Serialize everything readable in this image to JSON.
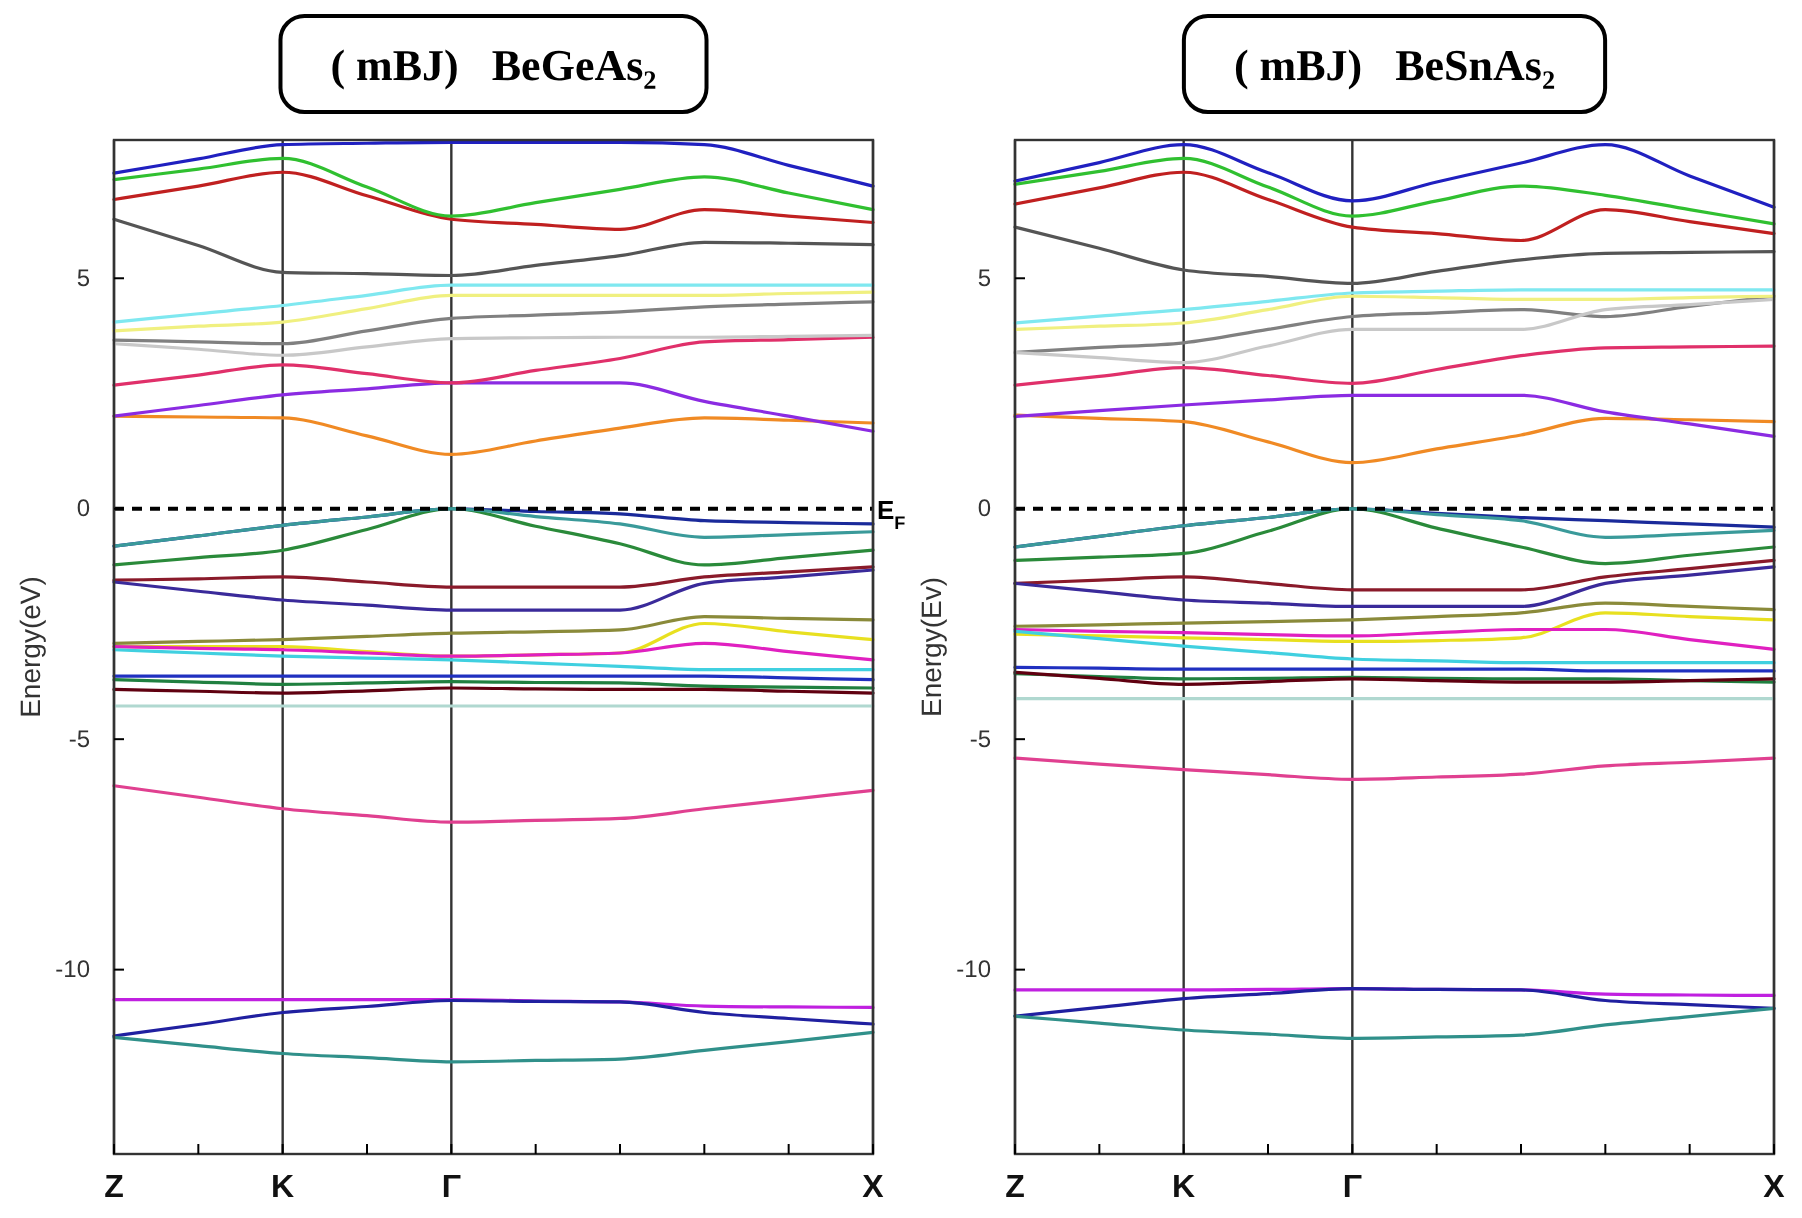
{
  "chart_data": [
    {
      "type": "line",
      "title": "( mBJ)   BeGeAs₂",
      "ylabel": "Energy(eV)",
      "categories": [
        "Z",
        null,
        "K",
        null,
        "Γ",
        null,
        null,
        null,
        null,
        "X"
      ],
      "ylim": [
        -14,
        8
      ],
      "yticks": [
        -10,
        -5,
        0,
        5
      ],
      "grid": "x",
      "marker": "none",
      "line_style": "solid",
      "ref_lines": [
        {
          "axis": "y",
          "value": 0,
          "label": "E$_{F}$",
          "color": "#000000",
          "line_style": "dashed"
        }
      ],
      "series": [
        {
          "color": "#f08a24",
          "values": [
            2.01,
            1.99,
            1.97,
            1.58,
            1.18,
            1.47,
            1.75,
            1.97,
            1.92,
            1.86
          ]
        },
        {
          "color": "#8b2be2",
          "values": [
            2.01,
            2.24,
            2.47,
            2.6,
            2.73,
            2.73,
            2.73,
            2.33,
            2.01,
            1.68
          ]
        },
        {
          "color": "#e0306a",
          "values": [
            2.68,
            2.9,
            3.12,
            2.93,
            2.73,
            3.0,
            3.26,
            3.62,
            3.67,
            3.72
          ]
        },
        {
          "color": "#808080",
          "values": [
            3.66,
            3.62,
            3.58,
            3.86,
            4.13,
            4.2,
            4.27,
            4.38,
            4.44,
            4.49
          ]
        },
        {
          "color": "#c8c8c8",
          "values": [
            3.58,
            3.46,
            3.33,
            3.51,
            3.69,
            3.71,
            3.72,
            3.72,
            3.74,
            3.76
          ]
        },
        {
          "color": "#7fe8f0",
          "values": [
            4.05,
            4.23,
            4.41,
            4.63,
            4.85,
            4.85,
            4.85,
            4.85,
            4.85,
            4.85
          ]
        },
        {
          "color": "#f0f080",
          "values": [
            3.86,
            3.96,
            4.05,
            4.34,
            4.63,
            4.63,
            4.63,
            4.63,
            4.67,
            4.7
          ]
        },
        {
          "color": "#555555",
          "values": [
            6.28,
            5.71,
            5.13,
            5.1,
            5.06,
            5.28,
            5.49,
            5.78,
            5.76,
            5.73
          ]
        },
        {
          "color": "#c02020",
          "values": [
            6.71,
            7.0,
            7.3,
            6.79,
            6.28,
            6.17,
            6.06,
            6.49,
            6.35,
            6.21
          ]
        },
        {
          "color": "#30c030",
          "values": [
            7.14,
            7.37,
            7.6,
            6.98,
            6.35,
            6.64,
            6.93,
            7.2,
            6.85,
            6.49
          ]
        },
        {
          "color": "#2020c0",
          "values": [
            7.28,
            7.59,
            7.9,
            7.93,
            7.95,
            7.95,
            7.95,
            7.9,
            7.45,
            7.0
          ]
        },
        {
          "color": "#1a2a9a",
          "values": [
            -0.81,
            -0.59,
            -0.36,
            -0.18,
            0,
            -0.06,
            -0.11,
            -0.26,
            -0.3,
            -0.33
          ]
        },
        {
          "color": "#2a8a3a",
          "values": [
            -1.22,
            -1.06,
            -0.9,
            -0.45,
            0,
            -0.38,
            -0.76,
            -1.22,
            -1.06,
            -0.9
          ]
        },
        {
          "color": "#3a9a9a",
          "values": [
            -0.81,
            -0.59,
            -0.36,
            -0.18,
            0,
            -0.17,
            -0.33,
            -0.62,
            -0.56,
            -0.5
          ]
        },
        {
          "color": "#8a1a2a",
          "values": [
            -1.55,
            -1.52,
            -1.48,
            -1.59,
            -1.7,
            -1.7,
            -1.7,
            -1.48,
            -1.37,
            -1.26
          ]
        },
        {
          "color": "#3a2a9a",
          "values": [
            -1.59,
            -1.79,
            -1.98,
            -2.09,
            -2.2,
            -2.2,
            -2.2,
            -1.62,
            -1.48,
            -1.33
          ]
        },
        {
          "color": "#8a8a3a",
          "values": [
            -2.92,
            -2.88,
            -2.84,
            -2.77,
            -2.7,
            -2.67,
            -2.63,
            -2.34,
            -2.38,
            -2.41
          ]
        },
        {
          "color": "#e8e020",
          "values": [
            -2.99,
            -2.99,
            -2.99,
            -3.1,
            -3.2,
            -3.17,
            -3.13,
            -2.49,
            -2.67,
            -2.84
          ]
        },
        {
          "color": "#e020c0",
          "values": [
            -2.99,
            -3.03,
            -3.06,
            -3.13,
            -3.2,
            -3.17,
            -3.13,
            -2.92,
            -3.1,
            -3.28
          ]
        },
        {
          "color": "#40d0e0",
          "values": [
            -3.06,
            -3.13,
            -3.2,
            -3.24,
            -3.28,
            -3.35,
            -3.42,
            -3.49,
            -3.49,
            -3.49
          ]
        },
        {
          "color": "#2030c0",
          "values": [
            -3.63,
            -3.63,
            -3.63,
            -3.63,
            -3.63,
            -3.63,
            -3.63,
            -3.63,
            -3.67,
            -3.71
          ]
        },
        {
          "color": "#208040",
          "values": [
            -3.71,
            -3.76,
            -3.81,
            -3.78,
            -3.75,
            -3.77,
            -3.78,
            -3.85,
            -3.87,
            -3.89
          ]
        },
        {
          "color": "#600010",
          "values": [
            -3.92,
            -3.96,
            -4.0,
            -3.95,
            -3.89,
            -3.91,
            -3.92,
            -3.92,
            -3.96,
            -4.0
          ]
        },
        {
          "color": "#b0d8d0",
          "values": [
            -4.28,
            -4.28,
            -4.28,
            -4.28,
            -4.28,
            -4.28,
            -4.28,
            -4.28,
            -4.28,
            -4.28
          ]
        },
        {
          "color": "#e04090",
          "values": [
            -6.01,
            -6.26,
            -6.51,
            -6.66,
            -6.8,
            -6.76,
            -6.72,
            -6.51,
            -6.31,
            -6.11
          ]
        },
        {
          "color": "#c020e0",
          "values": [
            -10.65,
            -10.65,
            -10.65,
            -10.65,
            -10.65,
            -10.68,
            -10.7,
            -10.79,
            -10.81,
            -10.82
          ]
        },
        {
          "color": "#2020a0",
          "values": [
            -11.44,
            -11.19,
            -10.93,
            -10.8,
            -10.67,
            -10.69,
            -10.7,
            -10.93,
            -11.06,
            -11.18
          ]
        },
        {
          "color": "#30908a",
          "values": [
            -11.47,
            -11.65,
            -11.82,
            -11.91,
            -12.0,
            -11.97,
            -11.94,
            -11.75,
            -11.56,
            -11.36
          ]
        }
      ]
    },
    {
      "type": "line",
      "title": "( mBJ)   BeSnAs₂",
      "ylabel": "Energy(Ev)",
      "categories": [
        "Z",
        null,
        "K",
        null,
        "Γ",
        null,
        null,
        null,
        null,
        "X"
      ],
      "ylim": [
        -14,
        8
      ],
      "yticks": [
        -10,
        -5,
        0,
        5
      ],
      "grid": "x",
      "marker": "none",
      "line_style": "solid",
      "ref_lines": [
        {
          "axis": "y",
          "value": 0,
          "color": "#000000",
          "line_style": "dashed"
        }
      ],
      "series": [
        {
          "color": "#f08a24",
          "values": [
            2.03,
            1.96,
            1.89,
            1.45,
            1.0,
            1.3,
            1.6,
            1.96,
            1.93,
            1.89
          ]
        },
        {
          "color": "#8b2be2",
          "values": [
            2.0,
            2.13,
            2.25,
            2.36,
            2.46,
            2.46,
            2.46,
            2.1,
            1.84,
            1.57
          ]
        },
        {
          "color": "#e0306a",
          "values": [
            2.68,
            2.87,
            3.06,
            2.89,
            2.72,
            3.02,
            3.32,
            3.49,
            3.51,
            3.53
          ]
        },
        {
          "color": "#808080",
          "values": [
            3.39,
            3.5,
            3.6,
            3.89,
            4.17,
            4.25,
            4.32,
            4.17,
            4.39,
            4.61
          ]
        },
        {
          "color": "#c8c8c8",
          "values": [
            3.39,
            3.28,
            3.17,
            3.53,
            3.89,
            3.89,
            3.89,
            4.32,
            4.43,
            4.54
          ]
        },
        {
          "color": "#7fe8f0",
          "values": [
            4.03,
            4.18,
            4.32,
            4.5,
            4.68,
            4.72,
            4.75,
            4.75,
            4.75,
            4.75
          ]
        },
        {
          "color": "#f0f080",
          "values": [
            3.89,
            3.96,
            4.03,
            4.32,
            4.61,
            4.58,
            4.54,
            4.54,
            4.58,
            4.61
          ]
        },
        {
          "color": "#555555",
          "values": [
            6.11,
            5.65,
            5.18,
            5.04,
            4.89,
            5.15,
            5.4,
            5.54,
            5.56,
            5.58
          ]
        },
        {
          "color": "#c02020",
          "values": [
            6.61,
            6.96,
            7.3,
            6.71,
            6.11,
            5.97,
            5.82,
            6.49,
            6.23,
            5.97
          ]
        },
        {
          "color": "#30c030",
          "values": [
            7.04,
            7.32,
            7.6,
            6.98,
            6.35,
            6.68,
            7.0,
            6.8,
            6.49,
            6.18
          ]
        },
        {
          "color": "#2020c0",
          "values": [
            7.11,
            7.51,
            7.9,
            7.29,
            6.68,
            7.09,
            7.5,
            7.9,
            7.22,
            6.54
          ]
        },
        {
          "color": "#1a2a9a",
          "values": [
            -0.83,
            -0.6,
            -0.37,
            -0.19,
            0,
            -0.1,
            -0.19,
            -0.26,
            -0.33,
            -0.4
          ]
        },
        {
          "color": "#2a8a3a",
          "values": [
            -1.12,
            -1.05,
            -0.97,
            -0.49,
            0,
            -0.42,
            -0.83,
            -1.19,
            -1.01,
            -0.83
          ]
        },
        {
          "color": "#3a9a9a",
          "values": [
            -0.83,
            -0.6,
            -0.37,
            -0.19,
            0,
            -0.13,
            -0.26,
            -0.62,
            -0.55,
            -0.47
          ]
        },
        {
          "color": "#8a1a2a",
          "values": [
            -1.62,
            -1.55,
            -1.48,
            -1.62,
            -1.76,
            -1.76,
            -1.76,
            -1.48,
            -1.3,
            -1.12
          ]
        },
        {
          "color": "#3a2a9a",
          "values": [
            -1.62,
            -1.8,
            -1.98,
            -2.05,
            -2.12,
            -2.12,
            -2.12,
            -1.62,
            -1.44,
            -1.26
          ]
        },
        {
          "color": "#8a8a3a",
          "values": [
            -2.55,
            -2.52,
            -2.48,
            -2.45,
            -2.41,
            -2.34,
            -2.26,
            -2.05,
            -2.12,
            -2.19
          ]
        },
        {
          "color": "#e8e020",
          "values": [
            -2.72,
            -2.76,
            -2.8,
            -2.84,
            -2.88,
            -2.86,
            -2.8,
            -2.26,
            -2.34,
            -2.41
          ]
        },
        {
          "color": "#e020c0",
          "values": [
            -2.62,
            -2.66,
            -2.69,
            -2.73,
            -2.76,
            -2.69,
            -2.62,
            -2.62,
            -2.84,
            -3.05
          ]
        },
        {
          "color": "#40d0e0",
          "values": [
            -2.66,
            -2.82,
            -2.98,
            -3.12,
            -3.26,
            -3.3,
            -3.34,
            -3.34,
            -3.34,
            -3.34
          ]
        },
        {
          "color": "#2030c0",
          "values": [
            -3.44,
            -3.46,
            -3.48,
            -3.48,
            -3.48,
            -3.48,
            -3.48,
            -3.52,
            -3.52,
            -3.52
          ]
        },
        {
          "color": "#208040",
          "values": [
            -3.58,
            -3.64,
            -3.69,
            -3.68,
            -3.66,
            -3.68,
            -3.69,
            -3.69,
            -3.73,
            -3.76
          ]
        },
        {
          "color": "#600010",
          "values": [
            -3.55,
            -3.68,
            -3.81,
            -3.75,
            -3.69,
            -3.73,
            -3.76,
            -3.76,
            -3.73,
            -3.69
          ]
        },
        {
          "color": "#b0d8d0",
          "values": [
            -4.12,
            -4.12,
            -4.12,
            -4.12,
            -4.12,
            -4.12,
            -4.12,
            -4.12,
            -4.12,
            -4.12
          ]
        },
        {
          "color": "#e04090",
          "values": [
            -5.41,
            -5.54,
            -5.66,
            -5.77,
            -5.87,
            -5.82,
            -5.76,
            -5.58,
            -5.5,
            -5.41
          ]
        },
        {
          "color": "#c020e0",
          "values": [
            -10.44,
            -10.44,
            -10.44,
            -10.43,
            -10.41,
            -10.43,
            -10.44,
            -10.53,
            -10.55,
            -10.56
          ]
        },
        {
          "color": "#2020a0",
          "values": [
            -11.01,
            -10.82,
            -10.63,
            -10.52,
            -10.41,
            -10.43,
            -10.44,
            -10.67,
            -10.76,
            -10.84
          ]
        },
        {
          "color": "#30908a",
          "values": [
            -11.01,
            -11.16,
            -11.31,
            -11.4,
            -11.49,
            -11.46,
            -11.42,
            -11.2,
            -11.02,
            -10.84
          ]
        }
      ]
    }
  ]
}
